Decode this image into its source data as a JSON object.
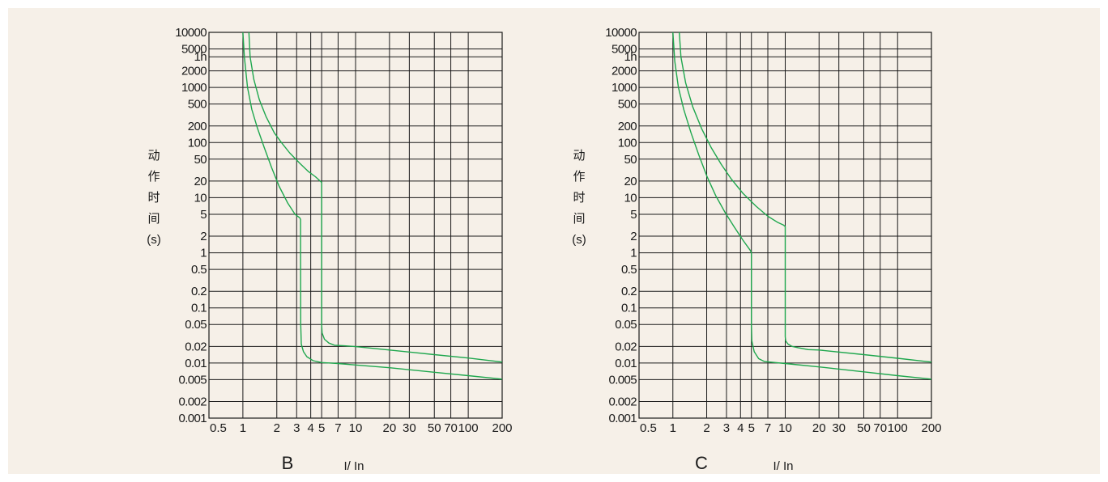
{
  "colors": {
    "background": "#f6f0e8",
    "grid": "#1a1a1a",
    "curve": "#1fa74e"
  },
  "chart_data": [
    {
      "type": "line",
      "title": "B",
      "xlabel": "I/ In",
      "ylabel_chars": [
        "动",
        "作",
        "时",
        "间",
        "(s)"
      ],
      "x_scale": "log",
      "y_scale": "log",
      "xlim": [
        0.5,
        200
      ],
      "ylim": [
        0.001,
        10000
      ],
      "x_ticks": [
        {
          "label": "0.5",
          "value": 0.5
        },
        {
          "label": "1",
          "value": 1
        },
        {
          "label": "2",
          "value": 2
        },
        {
          "label": "3",
          "value": 3
        },
        {
          "label": "4",
          "value": 4
        },
        {
          "label": "5",
          "value": 5
        },
        {
          "label": "7",
          "value": 7
        },
        {
          "label": "10",
          "value": 10
        },
        {
          "label": "20",
          "value": 20
        },
        {
          "label": "30",
          "value": 30
        },
        {
          "label": "50",
          "value": 50
        },
        {
          "label": "70",
          "value": 70
        },
        {
          "label": "100",
          "value": 100
        },
        {
          "label": "200",
          "value": 200
        }
      ],
      "y_ticks": [
        {
          "label": "10000",
          "value": 10000
        },
        {
          "label": "5000",
          "value": 5000
        },
        {
          "label": "1h",
          "value": 3600
        },
        {
          "label": "2000",
          "value": 2000
        },
        {
          "label": "1000",
          "value": 1000
        },
        {
          "label": "500",
          "value": 500
        },
        {
          "label": "200",
          "value": 200
        },
        {
          "label": "100",
          "value": 100
        },
        {
          "label": "50",
          "value": 50
        },
        {
          "label": "20",
          "value": 20
        },
        {
          "label": "10",
          "value": 10
        },
        {
          "label": "5",
          "value": 5
        },
        {
          "label": "2",
          "value": 2
        },
        {
          "label": "1",
          "value": 1
        },
        {
          "label": "0.5",
          "value": 0.5
        },
        {
          "label": "0.2",
          "value": 0.2
        },
        {
          "label": "0.1",
          "value": 0.1
        },
        {
          "label": "0.05",
          "value": 0.05
        },
        {
          "label": "0.02",
          "value": 0.02
        },
        {
          "label": "0.01",
          "value": 0.01
        },
        {
          "label": "0.005",
          "value": 0.005
        },
        {
          "label": "0.002",
          "value": 0.002
        },
        {
          "label": "0.001",
          "value": 0.001
        }
      ],
      "series": [
        {
          "x": [
            1.0,
            1.03,
            1.1,
            1.2,
            1.35,
            1.55,
            1.8,
            2.1,
            2.5,
            2.9,
            3.2,
            3.25,
            3.25,
            3.26,
            3.3,
            3.45,
            3.7,
            4.2,
            5.0,
            6.0,
            7.0,
            10,
            20,
            50,
            100,
            200
          ],
          "y": [
            10000,
            3600,
            1000,
            400,
            180,
            80,
            35,
            16,
            8,
            5,
            4.3,
            4,
            1,
            0.05,
            0.022,
            0.016,
            0.013,
            0.011,
            0.0102,
            0.01,
            0.0098,
            0.0092,
            0.0082,
            0.0068,
            0.0059,
            0.0051
          ]
        },
        {
          "x": [
            1.13,
            1.16,
            1.25,
            1.4,
            1.6,
            1.9,
            2.2,
            2.6,
            3.2,
            3.8,
            4.4,
            4.85,
            5.0,
            5.0,
            5.0,
            5.05,
            5.3,
            5.8,
            6.5,
            8,
            10,
            20,
            50,
            100,
            200
          ],
          "y": [
            10000,
            3600,
            1400,
            600,
            300,
            150,
            100,
            65,
            42,
            30,
            24,
            20,
            19,
            2,
            0.05,
            0.035,
            0.027,
            0.023,
            0.021,
            0.0205,
            0.0198,
            0.0172,
            0.0142,
            0.0123,
            0.0104
          ]
        }
      ]
    },
    {
      "type": "line",
      "title": "C",
      "xlabel": "I/ In",
      "ylabel_chars": [
        "动",
        "作",
        "时",
        "间",
        "(s)"
      ],
      "x_scale": "log",
      "y_scale": "log",
      "xlim": [
        0.5,
        200
      ],
      "ylim": [
        0.001,
        10000
      ],
      "x_ticks": [
        {
          "label": "0.5",
          "value": 0.5
        },
        {
          "label": "1",
          "value": 1
        },
        {
          "label": "2",
          "value": 2
        },
        {
          "label": "3",
          "value": 3
        },
        {
          "label": "4",
          "value": 4
        },
        {
          "label": "5",
          "value": 5
        },
        {
          "label": "7",
          "value": 7
        },
        {
          "label": "10",
          "value": 10
        },
        {
          "label": "20",
          "value": 20
        },
        {
          "label": "30",
          "value": 30
        },
        {
          "label": "50",
          "value": 50
        },
        {
          "label": "70",
          "value": 70
        },
        {
          "label": "100",
          "value": 100
        },
        {
          "label": "200",
          "value": 200
        }
      ],
      "y_ticks": [
        {
          "label": "10000",
          "value": 10000
        },
        {
          "label": "5000",
          "value": 5000
        },
        {
          "label": "1h",
          "value": 3600
        },
        {
          "label": "2000",
          "value": 2000
        },
        {
          "label": "1000",
          "value": 1000
        },
        {
          "label": "500",
          "value": 500
        },
        {
          "label": "200",
          "value": 200
        },
        {
          "label": "100",
          "value": 100
        },
        {
          "label": "50",
          "value": 50
        },
        {
          "label": "20",
          "value": 20
        },
        {
          "label": "10",
          "value": 10
        },
        {
          "label": "5",
          "value": 5
        },
        {
          "label": "2",
          "value": 2
        },
        {
          "label": "1",
          "value": 1
        },
        {
          "label": "0.5",
          "value": 0.5
        },
        {
          "label": "0.2",
          "value": 0.2
        },
        {
          "label": "0.1",
          "value": 0.1
        },
        {
          "label": "0.05",
          "value": 0.05
        },
        {
          "label": "0.02",
          "value": 0.02
        },
        {
          "label": "0.01",
          "value": 0.01
        },
        {
          "label": "0.005",
          "value": 0.005
        },
        {
          "label": "0.002",
          "value": 0.002
        },
        {
          "label": "0.001",
          "value": 0.001
        }
      ],
      "series": [
        {
          "x": [
            1.0,
            1.04,
            1.12,
            1.25,
            1.45,
            1.7,
            2.0,
            2.4,
            2.9,
            3.5,
            4.2,
            4.9,
            5.0,
            5.0,
            5.0,
            5.05,
            5.3,
            5.8,
            6.5,
            7,
            10,
            20,
            50,
            100,
            200
          ],
          "y": [
            10000,
            3000,
            1000,
            400,
            150,
            60,
            25,
            11,
            5.5,
            3,
            1.7,
            1.1,
            1,
            0.3,
            0.05,
            0.025,
            0.016,
            0.012,
            0.0107,
            0.0105,
            0.0098,
            0.0085,
            0.0069,
            0.0059,
            0.0051
          ]
        },
        {
          "x": [
            1.14,
            1.18,
            1.3,
            1.5,
            1.8,
            2.2,
            2.7,
            3.3,
            4.2,
            5.5,
            7,
            8.5,
            9.6,
            10,
            10,
            10,
            10.1,
            10.6,
            11.5,
            13,
            16,
            20,
            50,
            100,
            200
          ],
          "y": [
            10000,
            3600,
            1200,
            450,
            180,
            80,
            40,
            22,
            12,
            7,
            4.6,
            3.6,
            3.2,
            3,
            1,
            0.03,
            0.025,
            0.022,
            0.02,
            0.019,
            0.0175,
            0.0172,
            0.0142,
            0.0122,
            0.0104
          ]
        }
      ]
    }
  ]
}
